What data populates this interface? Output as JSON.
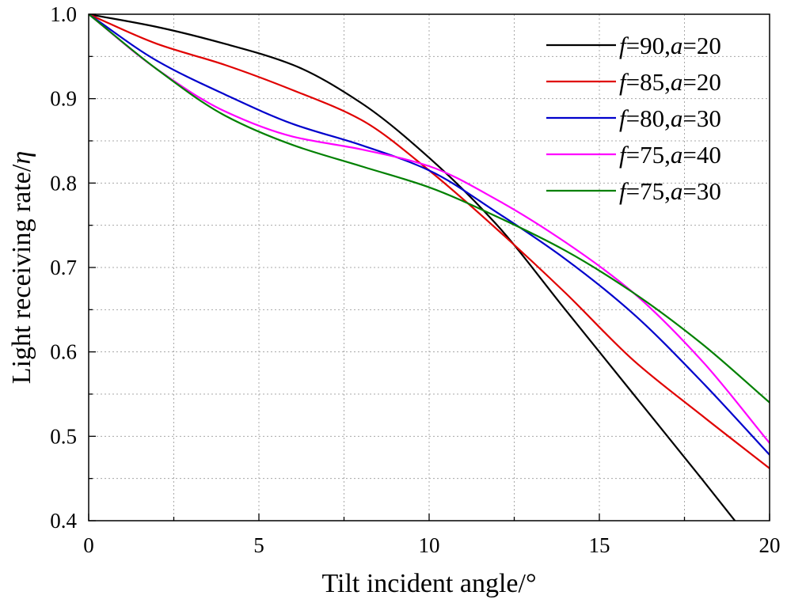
{
  "chart_data": {
    "type": "line",
    "xlabel": "Tilt incident angle/°",
    "ylabel_prefix": "Light receiving rate/",
    "ylabel_symbol": "η",
    "xlim": [
      0,
      20
    ],
    "ylim": [
      0.4,
      1.0
    ],
    "xticks": [
      0,
      5,
      10,
      15,
      20
    ],
    "xtick_labels": [
      "0",
      "5",
      "10",
      "15",
      "20"
    ],
    "yticks": [
      0.4,
      0.5,
      0.6,
      0.7,
      0.8,
      0.9,
      1.0
    ],
    "ytick_labels": [
      "0.4",
      "0.5",
      "0.6",
      "0.7",
      "0.8",
      "0.9",
      "1.0"
    ],
    "grid": true,
    "legend_position": "top-right",
    "x": [
      0,
      2,
      4,
      6,
      8,
      10,
      12,
      14,
      16,
      18,
      20
    ],
    "series": [
      {
        "name": "f=90,a=20",
        "label_parts": [
          {
            "t": "f",
            "i": true
          },
          {
            "t": "=90,",
            "i": false
          },
          {
            "t": "a",
            "i": true
          },
          {
            "t": "=20",
            "i": false
          }
        ],
        "color": "#000000",
        "values": [
          1.0,
          0.985,
          0.965,
          0.94,
          0.895,
          0.83,
          0.75,
          0.65,
          0.55,
          0.45,
          null
        ]
      },
      {
        "name": "f=85,a=20",
        "label_parts": [
          {
            "t": "f",
            "i": true
          },
          {
            "t": "=85,",
            "i": false
          },
          {
            "t": "a",
            "i": true
          },
          {
            "t": "=20",
            "i": false
          }
        ],
        "color": "#e00000",
        "values": [
          1.0,
          0.965,
          0.94,
          0.91,
          0.875,
          0.815,
          0.745,
          0.67,
          0.59,
          0.525,
          0.462
        ]
      },
      {
        "name": "f=80,a=30",
        "label_parts": [
          {
            "t": "f",
            "i": true
          },
          {
            "t": "=80,",
            "i": false
          },
          {
            "t": "a",
            "i": true
          },
          {
            "t": "=30",
            "i": false
          }
        ],
        "color": "#0000cc",
        "values": [
          1.0,
          0.945,
          0.905,
          0.87,
          0.845,
          0.815,
          0.765,
          0.71,
          0.645,
          0.565,
          0.478
        ]
      },
      {
        "name": "f=75,a=40",
        "label_parts": [
          {
            "t": "f",
            "i": true
          },
          {
            "t": "=75,",
            "i": false
          },
          {
            "t": "a",
            "i": true
          },
          {
            "t": "=40",
            "i": false
          }
        ],
        "color": "#ff00ff",
        "values": [
          1.0,
          0.935,
          0.885,
          0.855,
          0.84,
          0.82,
          0.78,
          0.73,
          0.67,
          0.59,
          0.492
        ]
      },
      {
        "name": "f=75,a=30",
        "label_parts": [
          {
            "t": "f",
            "i": true
          },
          {
            "t": "=75,",
            "i": false
          },
          {
            "t": "a",
            "i": true
          },
          {
            "t": "=30",
            "i": false
          }
        ],
        "color": "#008000",
        "values": [
          1.0,
          0.935,
          0.88,
          0.845,
          0.82,
          0.795,
          0.76,
          0.72,
          0.67,
          0.61,
          0.54
        ]
      }
    ]
  }
}
